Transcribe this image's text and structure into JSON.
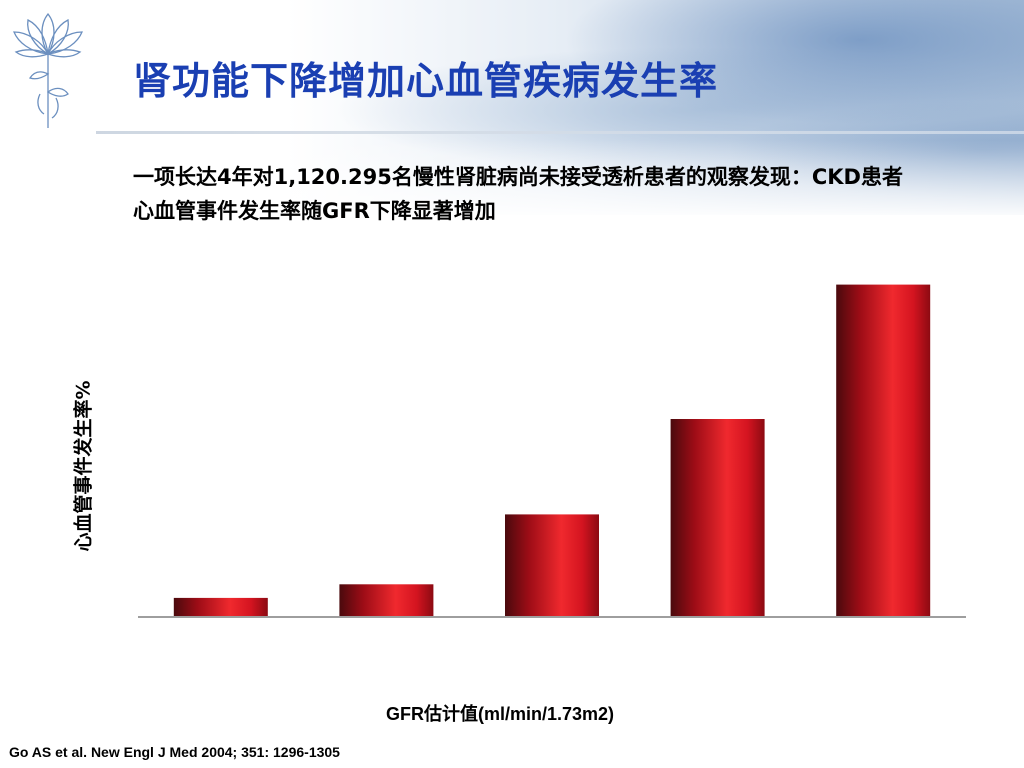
{
  "header": {
    "title": "肾功能下降增加心血管疾病发生率",
    "title_color": "#1a3fb2"
  },
  "subtitle": "一项长达4年对1,120.295名慢性肾脏病尚未接受透析患者的观察发现：CKD患者心血管事件发生率随GFR下降显著增加",
  "footer": {
    "citation": "Go AS et al. New Engl J Med 2004; 351: 1296-1305"
  },
  "logo_icon": "lotus-flower-icon",
  "chart_data": {
    "type": "bar",
    "title": "",
    "xlabel": "GFR估计值(ml/min/1.73m2)",
    "ylabel": "心血管事件发生率%",
    "categories": [
      "",
      "",
      "",
      "",
      ""
    ],
    "values": [
      2.1,
      3.6,
      11.3,
      21.8,
      36.6
    ],
    "ylim": [
      0,
      37
    ],
    "grid": false,
    "legend": "none",
    "bar_color": "#c8102e",
    "bar_color_dark": "#4a0a0d",
    "bar_color_light": "#f0292e"
  }
}
